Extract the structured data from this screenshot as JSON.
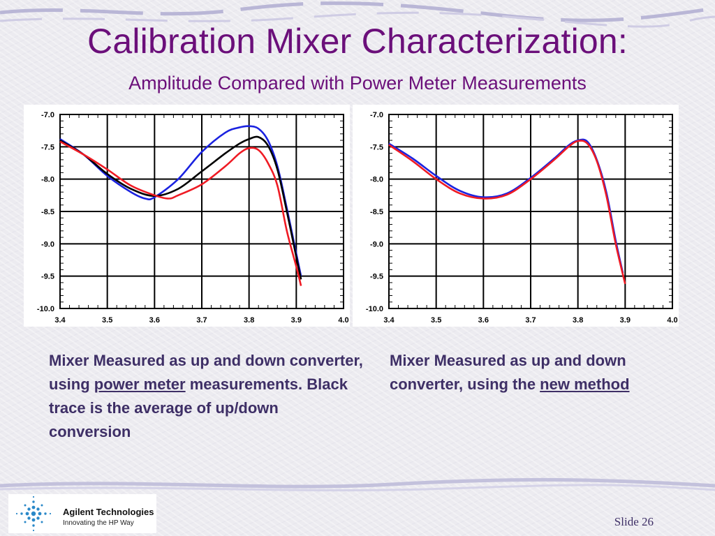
{
  "slide": {
    "title": "Calibration Mixer Characterization:",
    "subtitle": "Amplitude Compared with Power Meter Measurements",
    "slide_number": "Slide 26"
  },
  "captions": {
    "left": {
      "part1": "Mixer Measured as up and down converter, using ",
      "link": "power meter",
      "part2": " measurements.  Black trace is the average of up/down conversion"
    },
    "right": {
      "part1": "Mixer Measured as up and down converter, using the ",
      "link": "new method"
    }
  },
  "logo": {
    "name": "Agilent Technologies",
    "tagline": "Innovating the HP Way"
  },
  "colors": {
    "title": "#6b0f7a",
    "caption": "#3e2f66",
    "blue": "#1a22e0",
    "red": "#ef1b24",
    "black": "#000000"
  },
  "chart_data": [
    {
      "type": "line",
      "xlim": [
        3.4,
        4.0
      ],
      "ylim": [
        -10.0,
        -7.0
      ],
      "xticks": [
        "3.4",
        "3.5",
        "3.6",
        "3.7",
        "3.8",
        "3.9",
        "4.0"
      ],
      "yticks": [
        "-7.0",
        "-7.5",
        "-8.0",
        "-8.5",
        "-9.0",
        "-9.5",
        "-10.0"
      ],
      "grid": true,
      "series": [
        {
          "color": "#1a22e0",
          "x": [
            3.4,
            3.45,
            3.5,
            3.55,
            3.58,
            3.6,
            3.65,
            3.7,
            3.75,
            3.78,
            3.8,
            3.82,
            3.84,
            3.86,
            3.88,
            3.9,
            3.91
          ],
          "y": [
            -7.38,
            -7.62,
            -7.95,
            -8.2,
            -8.3,
            -8.28,
            -8.0,
            -7.58,
            -7.28,
            -7.2,
            -7.18,
            -7.22,
            -7.4,
            -7.8,
            -8.45,
            -9.15,
            -9.5
          ]
        },
        {
          "color": "#000000",
          "x": [
            3.4,
            3.45,
            3.5,
            3.55,
            3.6,
            3.65,
            3.7,
            3.75,
            3.78,
            3.8,
            3.82,
            3.84,
            3.86,
            3.88,
            3.9,
            3.91
          ],
          "y": [
            -7.4,
            -7.62,
            -7.92,
            -8.15,
            -8.26,
            -8.15,
            -7.88,
            -7.6,
            -7.45,
            -7.38,
            -7.35,
            -7.48,
            -7.85,
            -8.5,
            -9.2,
            -9.55
          ]
        },
        {
          "color": "#ef1b24",
          "x": [
            3.4,
            3.45,
            3.5,
            3.55,
            3.6,
            3.63,
            3.65,
            3.7,
            3.75,
            3.78,
            3.8,
            3.82,
            3.84,
            3.86,
            3.88,
            3.9,
            3.91
          ],
          "y": [
            -7.42,
            -7.62,
            -7.85,
            -8.1,
            -8.25,
            -8.3,
            -8.25,
            -8.08,
            -7.8,
            -7.6,
            -7.52,
            -7.55,
            -7.75,
            -8.1,
            -8.8,
            -9.35,
            -9.65
          ]
        }
      ]
    },
    {
      "type": "line",
      "xlim": [
        3.4,
        4.0
      ],
      "ylim": [
        -10.0,
        -7.0
      ],
      "xticks": [
        "3.4",
        "3.5",
        "3.6",
        "3.7",
        "3.8",
        "3.9",
        "4.0"
      ],
      "yticks": [
        "-7.0",
        "-7.5",
        "-8.0",
        "-8.5",
        "-9.0",
        "-9.5",
        "-10.0"
      ],
      "grid": true,
      "series": [
        {
          "color": "#1a22e0",
          "x": [
            3.4,
            3.45,
            3.5,
            3.55,
            3.6,
            3.65,
            3.7,
            3.75,
            3.78,
            3.8,
            3.82,
            3.84,
            3.86,
            3.88,
            3.895
          ],
          "y": [
            -7.45,
            -7.68,
            -7.95,
            -8.18,
            -8.28,
            -8.22,
            -7.98,
            -7.68,
            -7.48,
            -7.4,
            -7.42,
            -7.7,
            -8.2,
            -8.95,
            -9.45
          ]
        },
        {
          "color": "#ef1b24",
          "x": [
            3.4,
            3.45,
            3.5,
            3.55,
            3.6,
            3.65,
            3.7,
            3.75,
            3.78,
            3.8,
            3.82,
            3.84,
            3.86,
            3.88,
            3.9
          ],
          "y": [
            -7.47,
            -7.72,
            -8.0,
            -8.22,
            -8.3,
            -8.24,
            -8.0,
            -7.7,
            -7.5,
            -7.41,
            -7.45,
            -7.72,
            -8.25,
            -9.0,
            -9.62
          ]
        }
      ]
    }
  ]
}
